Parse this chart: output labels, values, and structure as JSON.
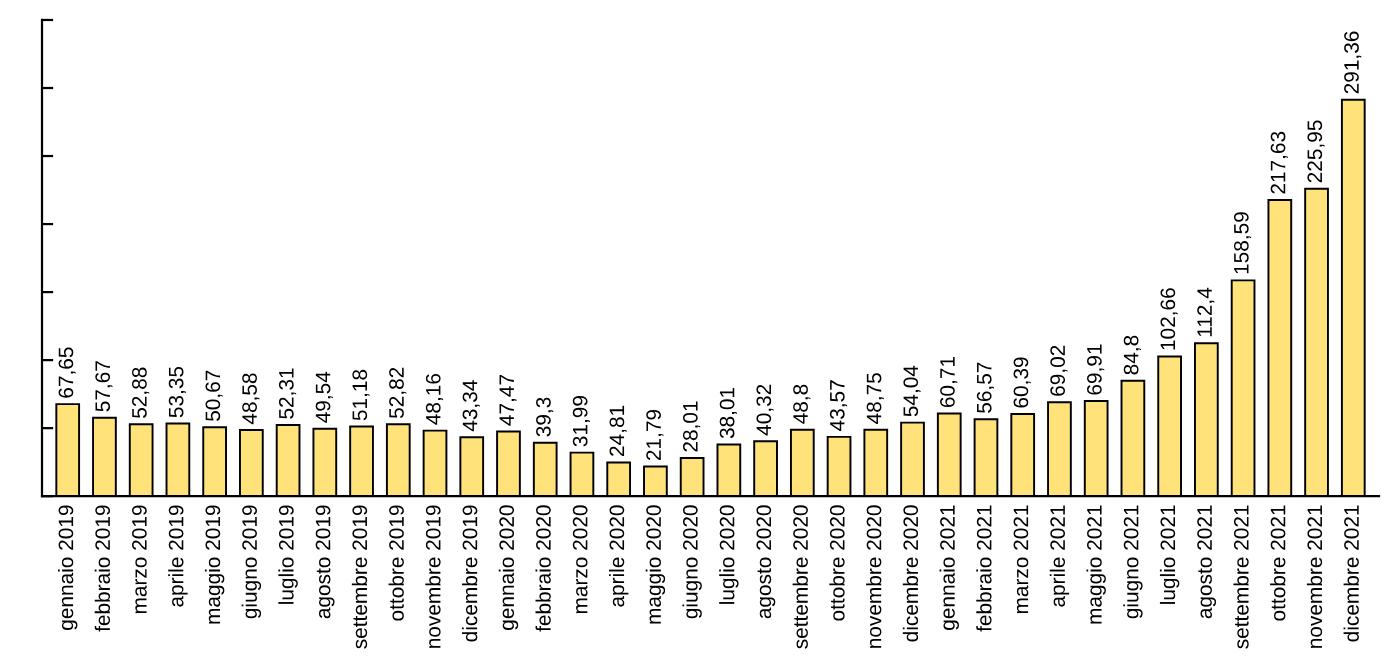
{
  "chart_data": {
    "type": "bar",
    "categories": [
      "gennaio 2019",
      "febbraio 2019",
      "marzo 2019",
      "aprile 2019",
      "maggio 2019",
      "giugno 2019",
      "luglio 2019",
      "agosto 2019",
      "settembre 2019",
      "ottobre 2019",
      "novembre 2019",
      "dicembre 2019",
      "gennaio 2020",
      "febbraio 2020",
      "marzo 2020",
      "aprile 2020",
      "maggio 2020",
      "giugno 2020",
      "luglio 2020",
      "agosto 2020",
      "settembre 2020",
      "ottobre 2020",
      "novembre 2020",
      "dicembre 2020",
      "gennaio 2021",
      "febbraio 2021",
      "marzo 2021",
      "aprile 2021",
      "maggio 2021",
      "giugno 2021",
      "luglio 2021",
      "agosto 2021",
      "settembre 2021",
      "ottobre 2021",
      "novembre 2021",
      "dicembre 2021"
    ],
    "values": [
      67.65,
      57.67,
      52.88,
      53.35,
      50.67,
      48.58,
      52.31,
      49.54,
      51.18,
      52.82,
      48.16,
      43.34,
      47.47,
      39.3,
      31.99,
      24.81,
      21.79,
      28.01,
      38.01,
      40.32,
      48.8,
      43.57,
      48.75,
      54.04,
      60.71,
      56.57,
      60.39,
      69.02,
      69.91,
      84.8,
      102.66,
      112.4,
      158.59,
      217.63,
      225.95,
      291.36
    ],
    "value_labels": [
      "67,65",
      "57,67",
      "52,88",
      "53,35",
      "50,67",
      "48,58",
      "52,31",
      "49,54",
      "51,18",
      "52,82",
      "48,16",
      "43,34",
      "47,47",
      "39,3",
      "31,99",
      "24,81",
      "21,79",
      "28,01",
      "38,01",
      "40,32",
      "48,8",
      "43,57",
      "48,75",
      "54,04",
      "60,71",
      "56,57",
      "60,39",
      "69,02",
      "69,91",
      "84,8",
      "102,66",
      "112,4",
      "158,59",
      "217,63",
      "225,95",
      "291,36"
    ],
    "color": "#ffe27a",
    "ylim": [
      0,
      350
    ],
    "yticks": [
      {
        "value": 0,
        "label": null
      },
      {
        "value": 50,
        "label": null
      },
      {
        "value": 100,
        "label": null
      },
      {
        "value": 150,
        "label": null
      },
      {
        "value": 200,
        "label": null
      },
      {
        "value": 250,
        "label": null
      },
      {
        "value": 300,
        "label": null
      },
      {
        "value": 350,
        "label": null
      }
    ],
    "tick_labels": "x",
    "grid": false,
    "legend": false
  }
}
